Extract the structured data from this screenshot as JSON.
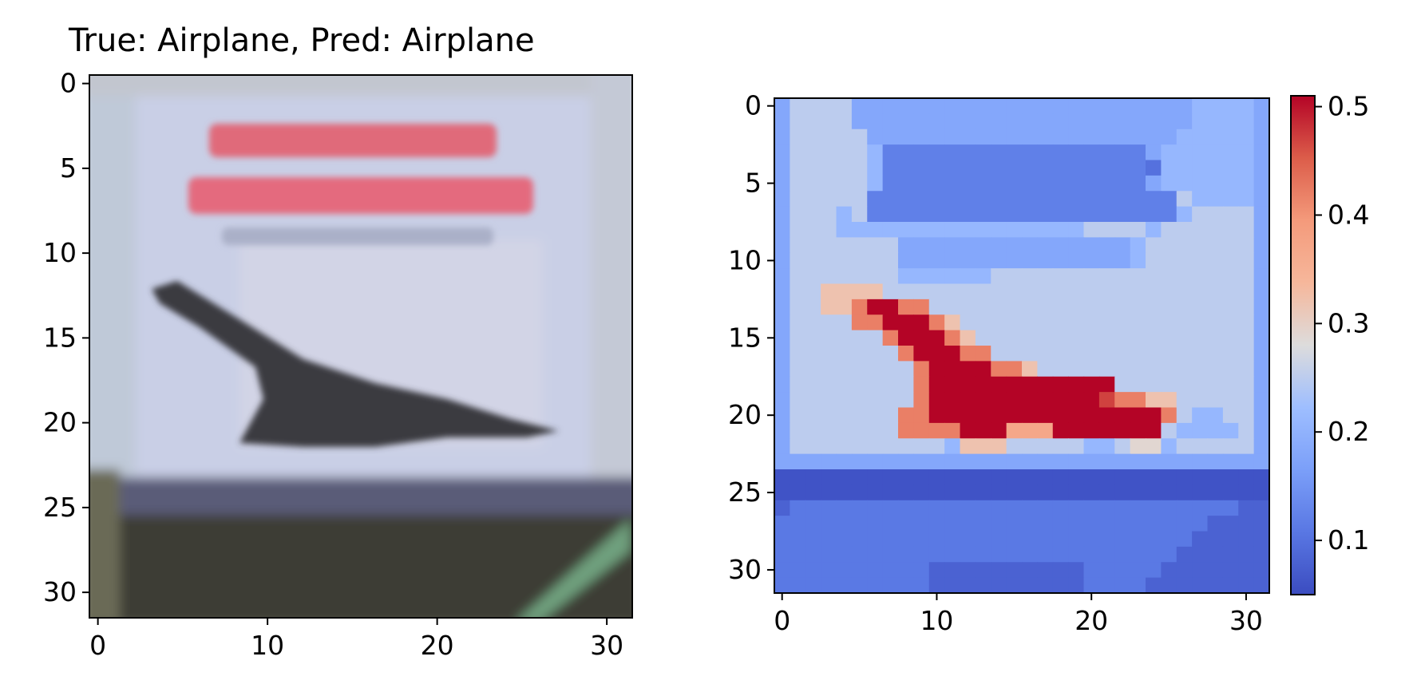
{
  "chart_data": [
    {
      "type": "image",
      "title": "True: Airplane, Pred: Airplane",
      "content": "32x32 blurred photo of a Concorde airplane in flight; red magazine title text at top; dark ground strip at bottom with a green stripe at bottom-right",
      "xlim": [
        -0.5,
        31.5
      ],
      "ylim": [
        31.5,
        -0.5
      ],
      "xticks": [
        0,
        10,
        20,
        30
      ],
      "yticks": [
        0,
        5,
        10,
        15,
        20,
        25,
        30
      ],
      "colors": {
        "sky": "#c9cfe6",
        "title_text": "#e06a7a",
        "plane": "#3a3a40",
        "ground": "#3d3d36",
        "stripe": "#6fa07e"
      }
    },
    {
      "type": "heatmap",
      "title": "",
      "colormap": "coolwarm",
      "xlim": [
        -0.5,
        31.5
      ],
      "ylim": [
        31.5,
        -0.5
      ],
      "xticks": [
        0,
        10,
        20,
        30
      ],
      "yticks": [
        0,
        5,
        10,
        15,
        20,
        25,
        30
      ],
      "colorbar": {
        "range": [
          0.05,
          0.51
        ],
        "ticks": [
          0.1,
          0.2,
          0.3,
          0.4,
          0.5
        ]
      },
      "values": [
        [
          0.18,
          0.25,
          0.25,
          0.25,
          0.25,
          0.18,
          0.18,
          0.18,
          0.18,
          0.18,
          0.18,
          0.18,
          0.18,
          0.18,
          0.18,
          0.18,
          0.18,
          0.18,
          0.18,
          0.18,
          0.18,
          0.18,
          0.18,
          0.18,
          0.18,
          0.18,
          0.18,
          0.21,
          0.21,
          0.21,
          0.21,
          0.18
        ],
        [
          0.18,
          0.25,
          0.25,
          0.25,
          0.25,
          0.18,
          0.18,
          0.18,
          0.18,
          0.18,
          0.18,
          0.18,
          0.18,
          0.18,
          0.18,
          0.18,
          0.18,
          0.18,
          0.18,
          0.18,
          0.18,
          0.18,
          0.18,
          0.18,
          0.18,
          0.18,
          0.18,
          0.21,
          0.21,
          0.21,
          0.21,
          0.18
        ],
        [
          0.18,
          0.25,
          0.25,
          0.25,
          0.25,
          0.25,
          0.18,
          0.18,
          0.18,
          0.18,
          0.18,
          0.18,
          0.18,
          0.18,
          0.18,
          0.18,
          0.18,
          0.18,
          0.18,
          0.18,
          0.18,
          0.18,
          0.18,
          0.18,
          0.18,
          0.18,
          0.21,
          0.21,
          0.21,
          0.21,
          0.21,
          0.18
        ],
        [
          0.18,
          0.25,
          0.25,
          0.25,
          0.25,
          0.25,
          0.21,
          0.12,
          0.12,
          0.12,
          0.12,
          0.12,
          0.12,
          0.12,
          0.12,
          0.12,
          0.12,
          0.12,
          0.12,
          0.12,
          0.12,
          0.12,
          0.12,
          0.12,
          0.18,
          0.21,
          0.21,
          0.21,
          0.21,
          0.21,
          0.21,
          0.18
        ],
        [
          0.18,
          0.25,
          0.25,
          0.25,
          0.25,
          0.25,
          0.21,
          0.12,
          0.12,
          0.12,
          0.12,
          0.12,
          0.12,
          0.12,
          0.12,
          0.12,
          0.12,
          0.12,
          0.12,
          0.12,
          0.12,
          0.12,
          0.12,
          0.12,
          0.1,
          0.21,
          0.21,
          0.21,
          0.21,
          0.21,
          0.21,
          0.18
        ],
        [
          0.18,
          0.25,
          0.25,
          0.25,
          0.25,
          0.25,
          0.21,
          0.12,
          0.12,
          0.12,
          0.12,
          0.12,
          0.12,
          0.12,
          0.12,
          0.12,
          0.12,
          0.12,
          0.12,
          0.12,
          0.12,
          0.12,
          0.12,
          0.12,
          0.18,
          0.21,
          0.21,
          0.21,
          0.21,
          0.21,
          0.21,
          0.18
        ],
        [
          0.18,
          0.25,
          0.25,
          0.25,
          0.25,
          0.25,
          0.12,
          0.12,
          0.12,
          0.12,
          0.12,
          0.12,
          0.12,
          0.12,
          0.12,
          0.12,
          0.12,
          0.12,
          0.12,
          0.12,
          0.12,
          0.12,
          0.12,
          0.12,
          0.12,
          0.12,
          0.25,
          0.21,
          0.21,
          0.21,
          0.21,
          0.18
        ],
        [
          0.18,
          0.25,
          0.25,
          0.25,
          0.21,
          0.25,
          0.12,
          0.12,
          0.12,
          0.12,
          0.12,
          0.12,
          0.12,
          0.12,
          0.12,
          0.12,
          0.12,
          0.12,
          0.12,
          0.12,
          0.12,
          0.12,
          0.12,
          0.12,
          0.12,
          0.12,
          0.21,
          0.25,
          0.25,
          0.25,
          0.25,
          0.18
        ],
        [
          0.18,
          0.25,
          0.25,
          0.25,
          0.21,
          0.21,
          0.21,
          0.21,
          0.21,
          0.21,
          0.21,
          0.21,
          0.21,
          0.21,
          0.21,
          0.21,
          0.21,
          0.21,
          0.21,
          0.21,
          0.25,
          0.25,
          0.25,
          0.25,
          0.21,
          0.25,
          0.25,
          0.25,
          0.25,
          0.25,
          0.25,
          0.18
        ],
        [
          0.18,
          0.25,
          0.25,
          0.25,
          0.25,
          0.25,
          0.25,
          0.25,
          0.18,
          0.18,
          0.18,
          0.18,
          0.18,
          0.18,
          0.18,
          0.18,
          0.18,
          0.18,
          0.18,
          0.18,
          0.18,
          0.18,
          0.18,
          0.21,
          0.25,
          0.25,
          0.25,
          0.25,
          0.25,
          0.25,
          0.25,
          0.18
        ],
        [
          0.18,
          0.25,
          0.25,
          0.25,
          0.25,
          0.25,
          0.25,
          0.25,
          0.18,
          0.18,
          0.18,
          0.18,
          0.18,
          0.18,
          0.18,
          0.18,
          0.18,
          0.18,
          0.18,
          0.18,
          0.18,
          0.18,
          0.18,
          0.21,
          0.25,
          0.25,
          0.25,
          0.25,
          0.25,
          0.25,
          0.25,
          0.18
        ],
        [
          0.18,
          0.25,
          0.25,
          0.25,
          0.25,
          0.25,
          0.25,
          0.25,
          0.21,
          0.21,
          0.21,
          0.21,
          0.21,
          0.21,
          0.25,
          0.25,
          0.25,
          0.25,
          0.25,
          0.25,
          0.25,
          0.25,
          0.25,
          0.25,
          0.25,
          0.25,
          0.25,
          0.25,
          0.25,
          0.25,
          0.25,
          0.18
        ],
        [
          0.18,
          0.25,
          0.25,
          0.32,
          0.32,
          0.32,
          0.32,
          0.25,
          0.25,
          0.25,
          0.25,
          0.25,
          0.25,
          0.25,
          0.25,
          0.25,
          0.25,
          0.25,
          0.25,
          0.25,
          0.25,
          0.25,
          0.25,
          0.25,
          0.25,
          0.25,
          0.25,
          0.25,
          0.25,
          0.25,
          0.25,
          0.18
        ],
        [
          0.18,
          0.25,
          0.25,
          0.32,
          0.32,
          0.42,
          0.51,
          0.51,
          0.42,
          0.42,
          0.25,
          0.25,
          0.25,
          0.25,
          0.25,
          0.25,
          0.25,
          0.25,
          0.25,
          0.25,
          0.25,
          0.25,
          0.25,
          0.25,
          0.25,
          0.25,
          0.25,
          0.25,
          0.25,
          0.25,
          0.25,
          0.18
        ],
        [
          0.18,
          0.25,
          0.25,
          0.25,
          0.25,
          0.42,
          0.42,
          0.51,
          0.51,
          0.51,
          0.42,
          0.32,
          0.25,
          0.25,
          0.25,
          0.25,
          0.25,
          0.25,
          0.25,
          0.25,
          0.25,
          0.25,
          0.25,
          0.25,
          0.25,
          0.25,
          0.25,
          0.25,
          0.25,
          0.25,
          0.25,
          0.18
        ],
        [
          0.18,
          0.25,
          0.25,
          0.25,
          0.25,
          0.25,
          0.25,
          0.42,
          0.51,
          0.51,
          0.51,
          0.42,
          0.32,
          0.25,
          0.25,
          0.25,
          0.25,
          0.25,
          0.25,
          0.25,
          0.25,
          0.25,
          0.25,
          0.25,
          0.25,
          0.25,
          0.25,
          0.25,
          0.25,
          0.25,
          0.25,
          0.18
        ],
        [
          0.18,
          0.25,
          0.25,
          0.25,
          0.25,
          0.25,
          0.25,
          0.25,
          0.42,
          0.51,
          0.51,
          0.51,
          0.42,
          0.42,
          0.25,
          0.25,
          0.25,
          0.25,
          0.25,
          0.25,
          0.25,
          0.25,
          0.25,
          0.25,
          0.25,
          0.25,
          0.25,
          0.25,
          0.25,
          0.25,
          0.25,
          0.18
        ],
        [
          0.18,
          0.25,
          0.25,
          0.25,
          0.25,
          0.25,
          0.25,
          0.25,
          0.25,
          0.42,
          0.51,
          0.51,
          0.51,
          0.51,
          0.42,
          0.42,
          0.32,
          0.25,
          0.25,
          0.25,
          0.25,
          0.25,
          0.25,
          0.25,
          0.25,
          0.25,
          0.25,
          0.25,
          0.25,
          0.25,
          0.25,
          0.18
        ],
        [
          0.18,
          0.25,
          0.25,
          0.25,
          0.25,
          0.25,
          0.25,
          0.25,
          0.25,
          0.42,
          0.51,
          0.51,
          0.51,
          0.51,
          0.51,
          0.51,
          0.51,
          0.51,
          0.51,
          0.51,
          0.51,
          0.51,
          0.25,
          0.25,
          0.25,
          0.25,
          0.25,
          0.25,
          0.25,
          0.25,
          0.25,
          0.18
        ],
        [
          0.18,
          0.25,
          0.25,
          0.25,
          0.25,
          0.25,
          0.25,
          0.25,
          0.25,
          0.42,
          0.51,
          0.51,
          0.51,
          0.51,
          0.51,
          0.51,
          0.51,
          0.51,
          0.51,
          0.51,
          0.51,
          0.47,
          0.42,
          0.42,
          0.32,
          0.32,
          0.25,
          0.25,
          0.25,
          0.25,
          0.25,
          0.18
        ],
        [
          0.18,
          0.25,
          0.25,
          0.25,
          0.25,
          0.25,
          0.25,
          0.25,
          0.42,
          0.42,
          0.51,
          0.51,
          0.51,
          0.51,
          0.51,
          0.51,
          0.51,
          0.51,
          0.51,
          0.51,
          0.51,
          0.51,
          0.51,
          0.51,
          0.51,
          0.42,
          0.25,
          0.21,
          0.21,
          0.25,
          0.25,
          0.18
        ],
        [
          0.18,
          0.25,
          0.25,
          0.25,
          0.25,
          0.25,
          0.25,
          0.25,
          0.42,
          0.42,
          0.42,
          0.42,
          0.51,
          0.51,
          0.51,
          0.37,
          0.37,
          0.37,
          0.51,
          0.51,
          0.51,
          0.51,
          0.51,
          0.51,
          0.51,
          0.25,
          0.21,
          0.21,
          0.21,
          0.21,
          0.25,
          0.18
        ],
        [
          0.18,
          0.25,
          0.25,
          0.25,
          0.25,
          0.25,
          0.25,
          0.25,
          0.25,
          0.25,
          0.25,
          0.21,
          0.32,
          0.32,
          0.32,
          0.25,
          0.25,
          0.25,
          0.25,
          0.25,
          0.21,
          0.21,
          0.25,
          0.29,
          0.29,
          0.21,
          0.25,
          0.25,
          0.25,
          0.25,
          0.25,
          0.18
        ],
        [
          0.18,
          0.18,
          0.18,
          0.18,
          0.18,
          0.18,
          0.18,
          0.18,
          0.18,
          0.18,
          0.18,
          0.18,
          0.18,
          0.18,
          0.18,
          0.18,
          0.18,
          0.18,
          0.18,
          0.18,
          0.18,
          0.18,
          0.18,
          0.18,
          0.18,
          0.18,
          0.18,
          0.18,
          0.18,
          0.18,
          0.18,
          0.18
        ],
        [
          0.06,
          0.06,
          0.06,
          0.06,
          0.06,
          0.06,
          0.06,
          0.06,
          0.06,
          0.06,
          0.06,
          0.06,
          0.06,
          0.06,
          0.06,
          0.06,
          0.06,
          0.06,
          0.06,
          0.06,
          0.06,
          0.06,
          0.06,
          0.06,
          0.06,
          0.06,
          0.06,
          0.06,
          0.06,
          0.06,
          0.06,
          0.06
        ],
        [
          0.06,
          0.06,
          0.06,
          0.06,
          0.06,
          0.06,
          0.06,
          0.06,
          0.06,
          0.06,
          0.06,
          0.06,
          0.06,
          0.06,
          0.06,
          0.06,
          0.06,
          0.06,
          0.06,
          0.06,
          0.06,
          0.06,
          0.06,
          0.06,
          0.06,
          0.06,
          0.06,
          0.06,
          0.06,
          0.06,
          0.06,
          0.06
        ],
        [
          0.08,
          0.11,
          0.11,
          0.11,
          0.11,
          0.11,
          0.11,
          0.11,
          0.11,
          0.11,
          0.11,
          0.11,
          0.11,
          0.11,
          0.11,
          0.11,
          0.11,
          0.11,
          0.11,
          0.11,
          0.11,
          0.11,
          0.11,
          0.11,
          0.11,
          0.11,
          0.11,
          0.11,
          0.11,
          0.11,
          0.08,
          0.08
        ],
        [
          0.11,
          0.11,
          0.11,
          0.11,
          0.11,
          0.11,
          0.11,
          0.11,
          0.11,
          0.11,
          0.11,
          0.11,
          0.11,
          0.11,
          0.11,
          0.11,
          0.11,
          0.11,
          0.11,
          0.11,
          0.11,
          0.11,
          0.11,
          0.11,
          0.11,
          0.11,
          0.11,
          0.11,
          0.08,
          0.08,
          0.08,
          0.08
        ],
        [
          0.11,
          0.11,
          0.11,
          0.11,
          0.11,
          0.11,
          0.11,
          0.11,
          0.11,
          0.11,
          0.11,
          0.11,
          0.11,
          0.11,
          0.11,
          0.11,
          0.11,
          0.11,
          0.11,
          0.11,
          0.11,
          0.11,
          0.11,
          0.11,
          0.11,
          0.11,
          0.11,
          0.08,
          0.08,
          0.08,
          0.08,
          0.08
        ],
        [
          0.11,
          0.11,
          0.11,
          0.11,
          0.11,
          0.11,
          0.11,
          0.11,
          0.11,
          0.11,
          0.11,
          0.11,
          0.11,
          0.11,
          0.11,
          0.11,
          0.11,
          0.11,
          0.11,
          0.11,
          0.11,
          0.11,
          0.11,
          0.11,
          0.11,
          0.11,
          0.08,
          0.08,
          0.08,
          0.08,
          0.08,
          0.08
        ],
        [
          0.11,
          0.11,
          0.11,
          0.11,
          0.11,
          0.11,
          0.11,
          0.11,
          0.11,
          0.11,
          0.08,
          0.08,
          0.08,
          0.08,
          0.08,
          0.08,
          0.08,
          0.08,
          0.08,
          0.08,
          0.11,
          0.11,
          0.11,
          0.11,
          0.11,
          0.08,
          0.08,
          0.08,
          0.08,
          0.08,
          0.08,
          0.08
        ],
        [
          0.11,
          0.11,
          0.11,
          0.11,
          0.11,
          0.11,
          0.11,
          0.11,
          0.11,
          0.11,
          0.08,
          0.08,
          0.08,
          0.08,
          0.08,
          0.08,
          0.08,
          0.08,
          0.08,
          0.08,
          0.11,
          0.11,
          0.11,
          0.11,
          0.08,
          0.08,
          0.08,
          0.08,
          0.08,
          0.08,
          0.08,
          0.08
        ]
      ]
    }
  ]
}
